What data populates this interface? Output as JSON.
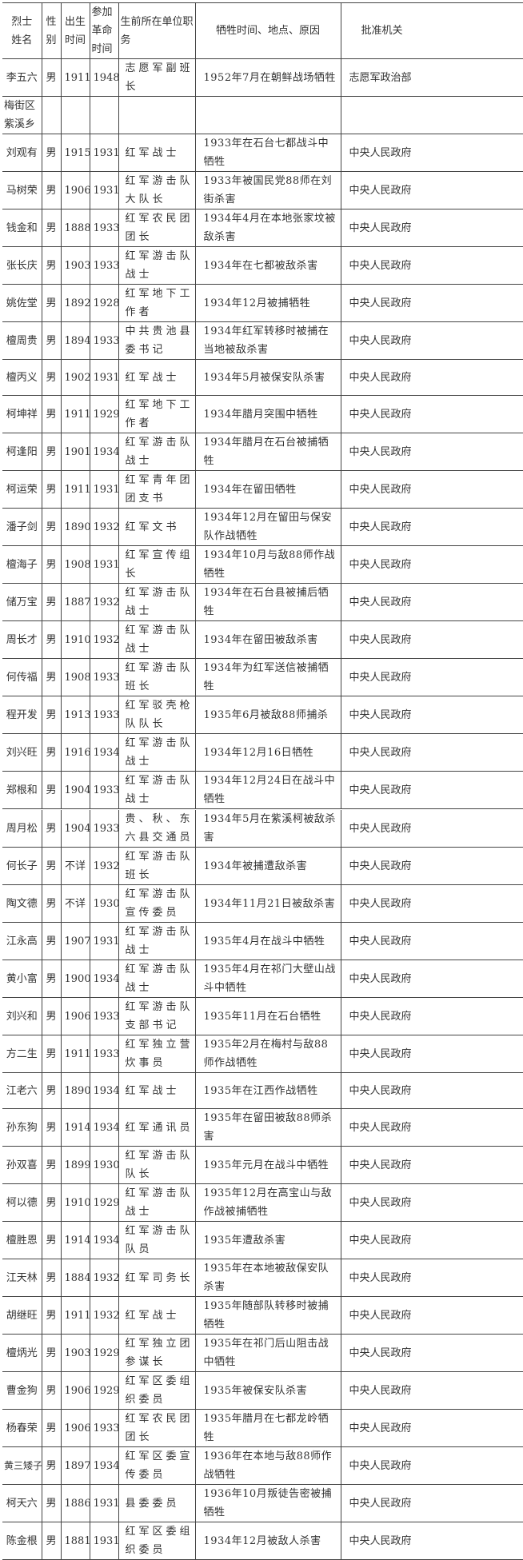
{
  "headers": [
    "烈士姓名",
    "性别",
    "出生时间",
    "参加革命时间",
    "生前所在单位职务",
    "牺牲时间、地点、原因",
    "批准机关"
  ],
  "table1": [
    [
      "李五六",
      "男",
      "1911",
      "1948",
      "志愿军副班长",
      "1952年7月在朝鲜战场牺牲",
      "志愿军政治部"
    ],
    [
      "梅街区紫溪乡",
      "",
      "",
      "",
      "",
      "",
      ""
    ],
    [
      "刘观有",
      "男",
      "1915",
      "1931",
      "红军战士",
      "1933年在石台七都战斗中牺牲",
      "中央人民政府"
    ],
    [
      "马树荣",
      "男",
      "1906",
      "1931",
      "红军游击队大队长",
      "1933年被国民党88师在刘街杀害",
      "中央人民政府"
    ],
    [
      "钱金和",
      "男",
      "1888",
      "1933",
      "红军农民团团长",
      "1934年4月在本地张家坟被敌杀害",
      "中央人民政府"
    ],
    [
      "张长庆",
      "男",
      "1903",
      "1933",
      "红军游击队战士",
      "1934年在七都被敌杀害",
      "中央人民政府"
    ],
    [
      "姚佐堂",
      "男",
      "1892",
      "1928",
      "红军地下工作者",
      "1934年12月被捕牺牲",
      "中央人民政府"
    ],
    [
      "檀周贵",
      "男",
      "1894",
      "1933",
      "中共贵池县委书记",
      "1934年红军转移时被捕在当地被敌杀害",
      "中央人民政府"
    ],
    [
      "檀丙义",
      "男",
      "1902",
      "1931",
      "红军战士",
      "1934年5月被保安队杀害",
      "中央人民政府"
    ],
    [
      "柯坤祥",
      "男",
      "1911",
      "1929",
      "红军地下工作者",
      "1934年腊月突围中牺牲",
      "中央人民政府"
    ],
    [
      "柯逢阳",
      "男",
      "1901",
      "1934",
      "红军游击队战士",
      "1934年腊月在石台被捕牺牲",
      "中央人民政府"
    ],
    [
      "柯运荣",
      "男",
      "1911",
      "1931",
      "红军青年团团支书",
      "1934年在留田牺牲",
      "中央人民政府"
    ],
    [
      "潘子剑",
      "男",
      "1890",
      "1932",
      "红军文书",
      "1934年12月在留田与保安队作战牺牲",
      "中央人民政府"
    ],
    [
      "檀海子",
      "男",
      "1908",
      "1931",
      "红军宣传组长",
      "1934年10月与敌88师作战牺牲",
      "中央人民政府"
    ],
    [
      "储万宝",
      "男",
      "1887",
      "1932",
      "红军游击队战士",
      "1934年在石台县被捕后牺牲",
      "中央人民政府"
    ],
    [
      "周长才",
      "男",
      "1910",
      "1932",
      "红军游击队战士",
      "1934年在留田被敌杀害",
      "中央人民政府"
    ],
    [
      "何传福",
      "男",
      "1908",
      "1933",
      "红军游击队班长",
      "1934年为红军送信被捕牺牲",
      "中央人民政府"
    ],
    [
      "程开发",
      "男",
      "1913",
      "1933",
      "红军驳壳枪队队长",
      "1935年6月被敌88师捕杀",
      "中央人民政府"
    ],
    [
      "刘兴旺",
      "男",
      "1916",
      "1934",
      "红军游击队战士",
      "1934年12月16日牺牲",
      "中央人民政府"
    ],
    [
      "郑根和",
      "男",
      "1904",
      "1933",
      "红军游击队战士",
      "1934年12月24日在战斗中牺牲",
      "中央人民政府"
    ]
  ],
  "table2": [
    [
      "周月松",
      "男",
      "1904",
      "1933",
      "贵、秋、东六县交通员",
      "1934年5月在紫溪柯被敌杀害",
      "中央人民政府"
    ],
    [
      "何长子",
      "男",
      "不详",
      "1932",
      "红军游击队班长",
      "1934年被捕遭敌杀害",
      "中央人民政府"
    ],
    [
      "陶文德",
      "男",
      "不详",
      "1930",
      "红军游击队宣传委员",
      "1934年11月21日被敌杀害",
      "中央人民政府"
    ],
    [
      "江永高",
      "男",
      "1907",
      "1931",
      "红军游击队战士",
      "1935年4月在战斗中牺牲",
      "中央人民政府"
    ],
    [
      "黄小富",
      "男",
      "1900",
      "1934",
      "红军游击队战士",
      "1935年4月在祁门大壁山战斗中牺牲",
      "中央人民政府"
    ],
    [
      "刘兴和",
      "男",
      "1906",
      "1933",
      "红军游击队支部书记",
      "1935年11月在石台牺牲",
      "中央人民政府"
    ],
    [
      "方二生",
      "男",
      "1911",
      "1933",
      "红军独立营炊事员",
      "1935年2月在梅村与敌88师作战牺牲",
      "中央人民政府"
    ],
    [
      "江老六",
      "男",
      "1890",
      "1934",
      "红军战士",
      "1935年在江西作战牺牲",
      "中央人民政府"
    ],
    [
      "孙东狗",
      "男",
      "1914",
      "1934",
      "红军通讯员",
      "1935年在留田被敌88师杀害",
      "中央人民政府"
    ],
    [
      "孙双喜",
      "男",
      "1899",
      "1930",
      "红军游击队队长",
      "1935年元月在战斗中牺牲",
      "中央人民政府"
    ],
    [
      "柯以德",
      "男",
      "1910",
      "1929",
      "红军游击队战士",
      "1935年12月在高宝山与敌作战被捕牺牲",
      "中央人民政府"
    ],
    [
      "檀胜恩",
      "男",
      "1914",
      "1934",
      "红军游击队队员",
      "1935年遭敌杀害",
      "中央人民政府"
    ],
    [
      "江天林",
      "男",
      "1884",
      "1932",
      "红军司务长",
      "1935年在本地被敌保安队杀害",
      "中央人民政府"
    ],
    [
      "胡继旺",
      "男",
      "1911",
      "1932",
      "红军战士",
      "1935年随部队转移时被捕牺牲",
      "中央人民政府"
    ],
    [
      "檀炳光",
      "男",
      "1903",
      "1929",
      "红军独立团参谋长",
      "1935年在祁门后山阻击战中牺牲",
      "中央人民政府"
    ],
    [
      "曹金狗",
      "男",
      "1906",
      "1929",
      "红军区委组织委员",
      "1935年被保安队杀害",
      "中央人民政府"
    ],
    [
      "杨春荣",
      "男",
      "1906",
      "1933",
      "红军农民团团长",
      "1935年腊月在七都龙岭牺牲",
      "中央人民政府"
    ],
    [
      "黄三矮子",
      "男",
      "1897",
      "1934",
      "红军区委宣传委员",
      "1936年在本地与敌88师作战牺牲",
      "中央人民政府"
    ],
    [
      "柯天六",
      "男",
      "1886",
      "1931",
      "县委委员",
      "1936年10月叛徒告密被捕牺牲",
      "中央人民政府"
    ],
    [
      "陈金根",
      "男",
      "1881",
      "1931",
      "红军区委组织委员",
      "1934年12月被敌人杀害",
      "中央人民政府"
    ]
  ]
}
